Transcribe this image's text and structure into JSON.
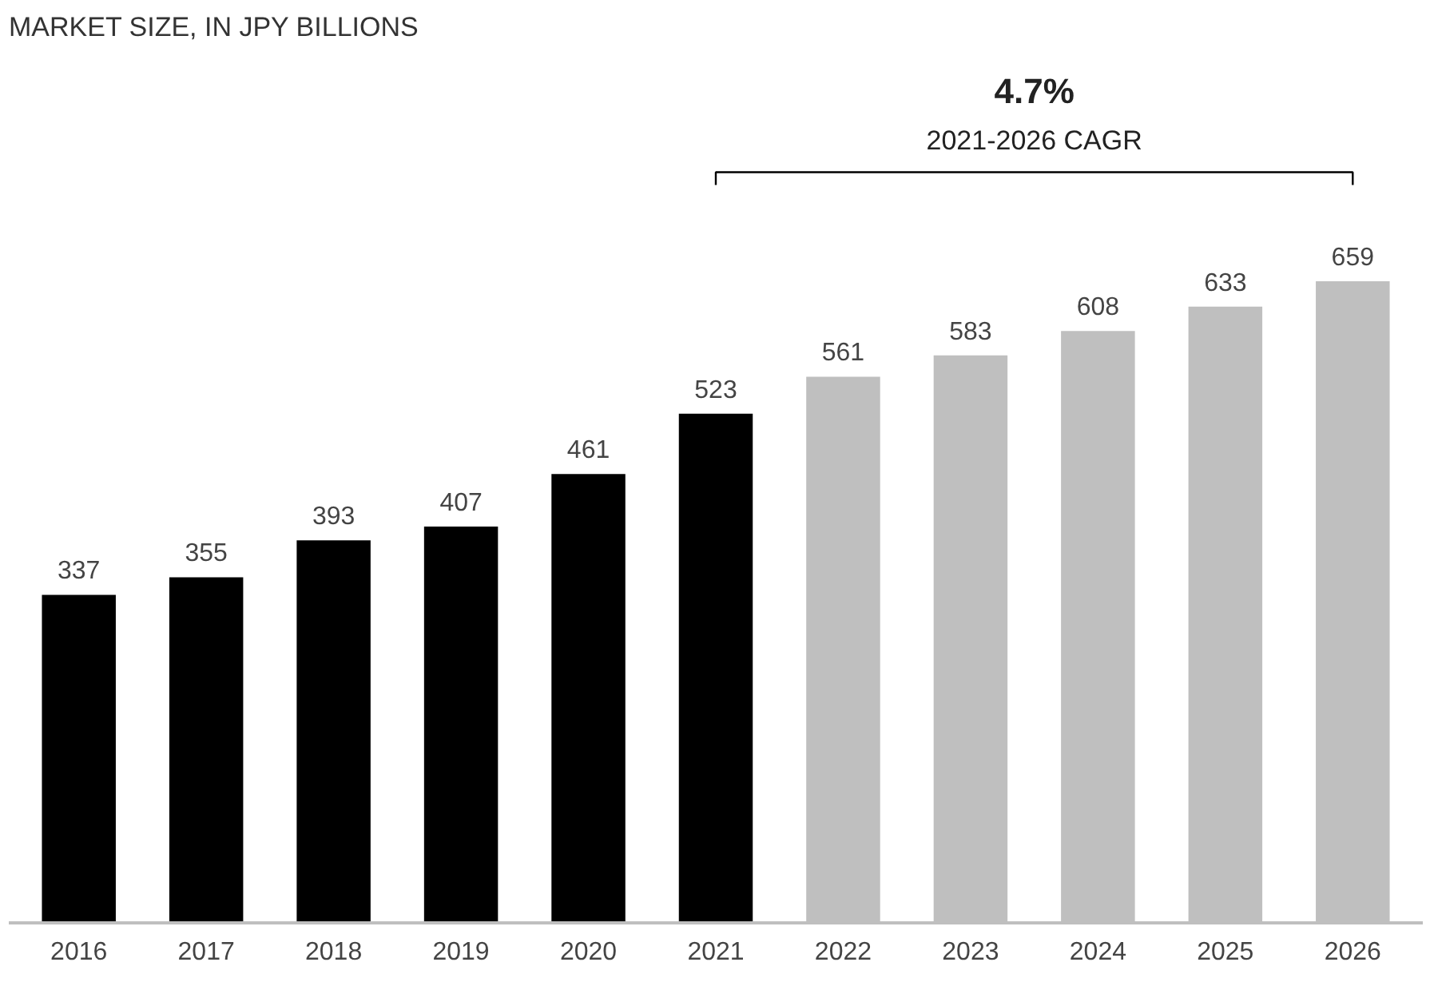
{
  "chart_data": {
    "type": "bar",
    "title": "MARKET SIZE, IN JPY BILLIONS",
    "categories": [
      "2016",
      "2017",
      "2018",
      "2019",
      "2020",
      "2021",
      "2022",
      "2023",
      "2024",
      "2025",
      "2026"
    ],
    "values": [
      337,
      355,
      393,
      407,
      461,
      523,
      561,
      583,
      608,
      633,
      659
    ],
    "colors": [
      "#000000",
      "#000000",
      "#000000",
      "#000000",
      "#000000",
      "#000000",
      "#bfbfbf",
      "#bfbfbf",
      "#bfbfbf",
      "#bfbfbf",
      "#bfbfbf"
    ],
    "data_labels": true,
    "annotations": [
      "4.7%",
      "2021-2026 CAGR"
    ]
  }
}
